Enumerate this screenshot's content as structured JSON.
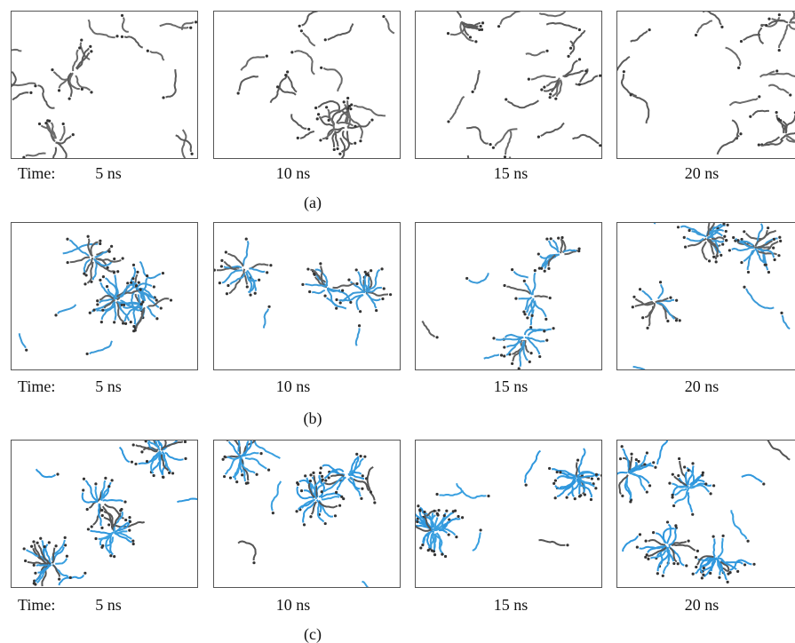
{
  "rows": [
    {
      "time_prefix": "Time:",
      "times": [
        "5 ns",
        "10 ns",
        "15 ns",
        "20 ns"
      ],
      "label": "(a)"
    },
    {
      "time_prefix": "Time:",
      "times": [
        "5 ns",
        "10 ns",
        "15 ns",
        "20 ns"
      ],
      "label": "(b)"
    },
    {
      "time_prefix": "Time:",
      "times": [
        "5 ns",
        "10 ns",
        "15 ns",
        "20 ns"
      ],
      "label": "(c)"
    }
  ]
}
